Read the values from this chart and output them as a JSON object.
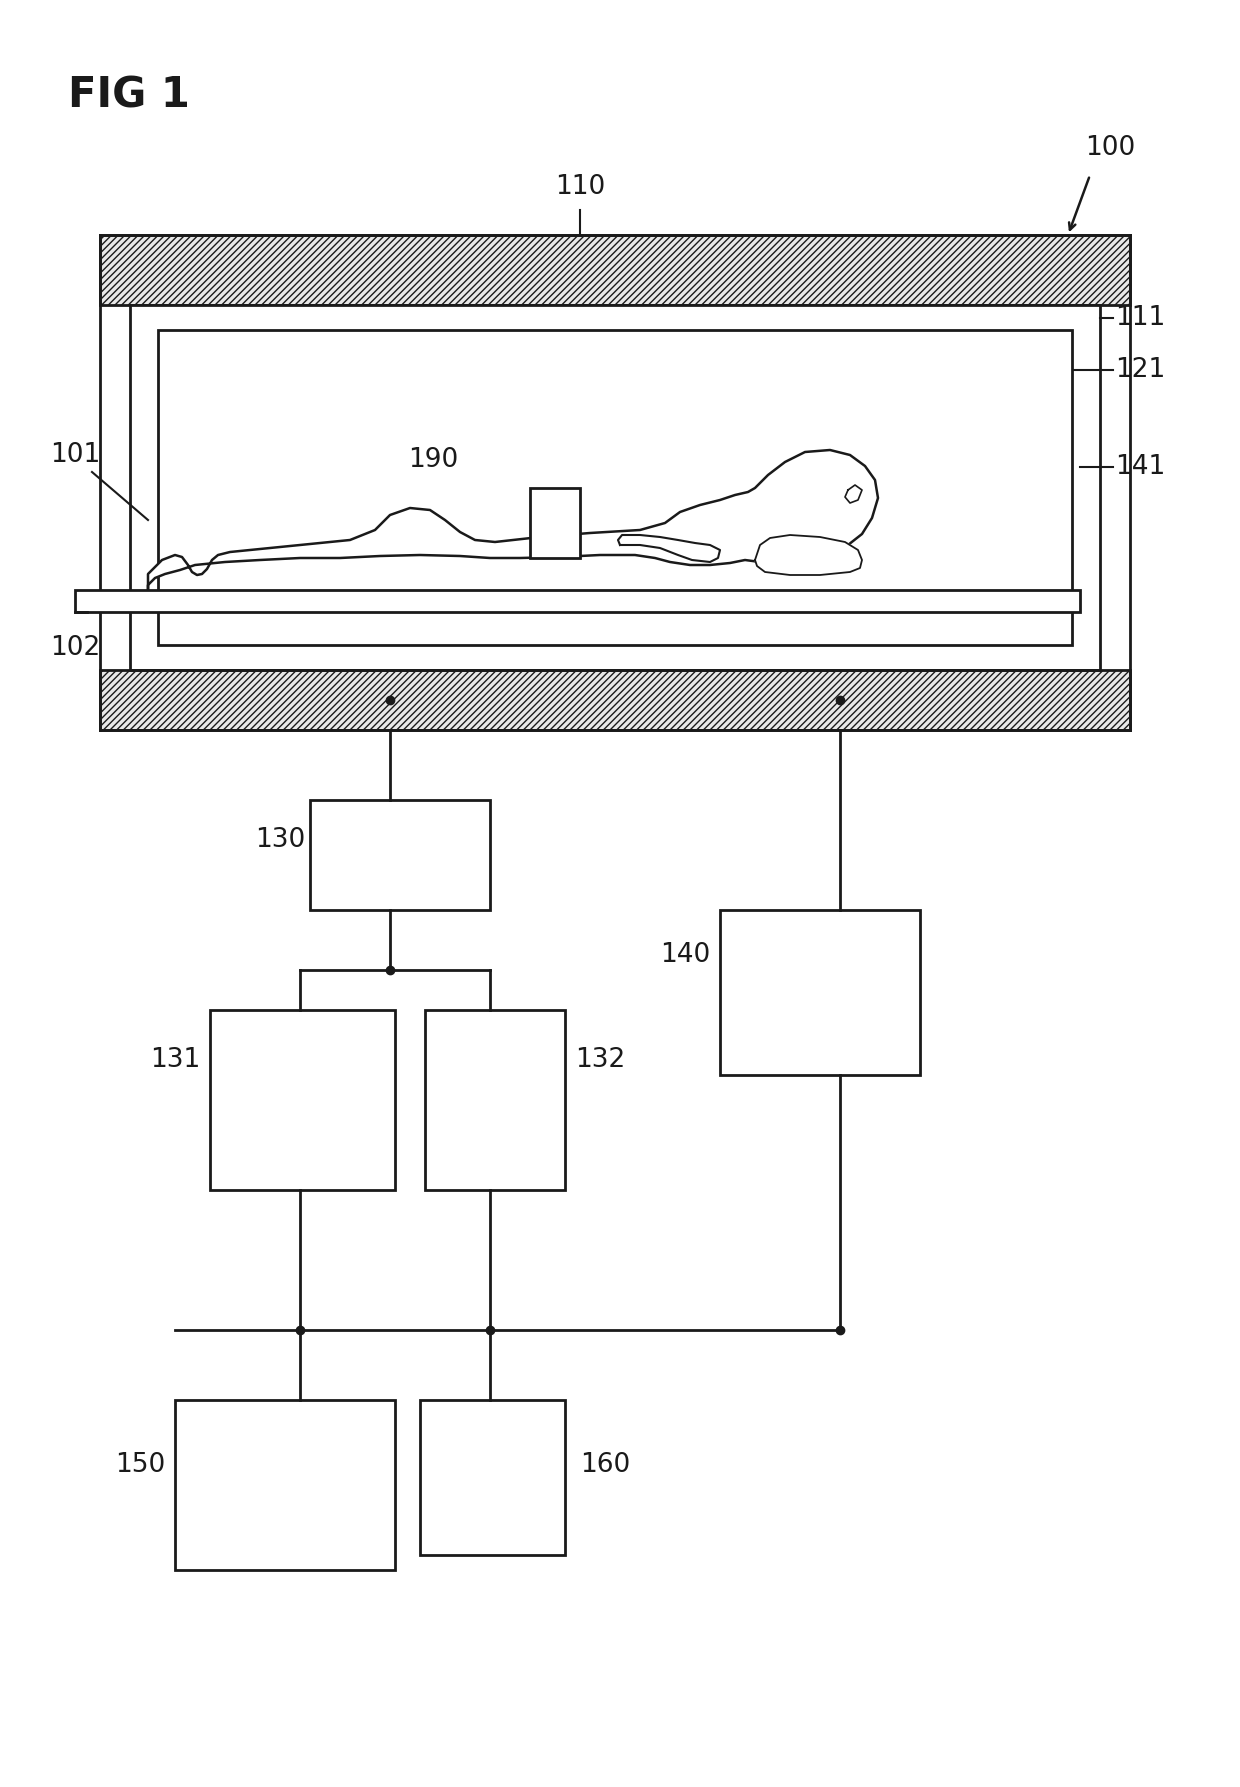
{
  "fig_label": "FIG 1",
  "bg_color": "#ffffff",
  "line_color": "#1a1a1a",
  "label_100": "100",
  "label_110": "110",
  "label_111": "111",
  "label_121": "121",
  "label_141": "141",
  "label_101": "101",
  "label_102": "102",
  "label_190": "190",
  "label_130": "130",
  "label_131": "131",
  "label_132": "132",
  "label_140": "140",
  "label_150": "150",
  "label_160": "160"
}
